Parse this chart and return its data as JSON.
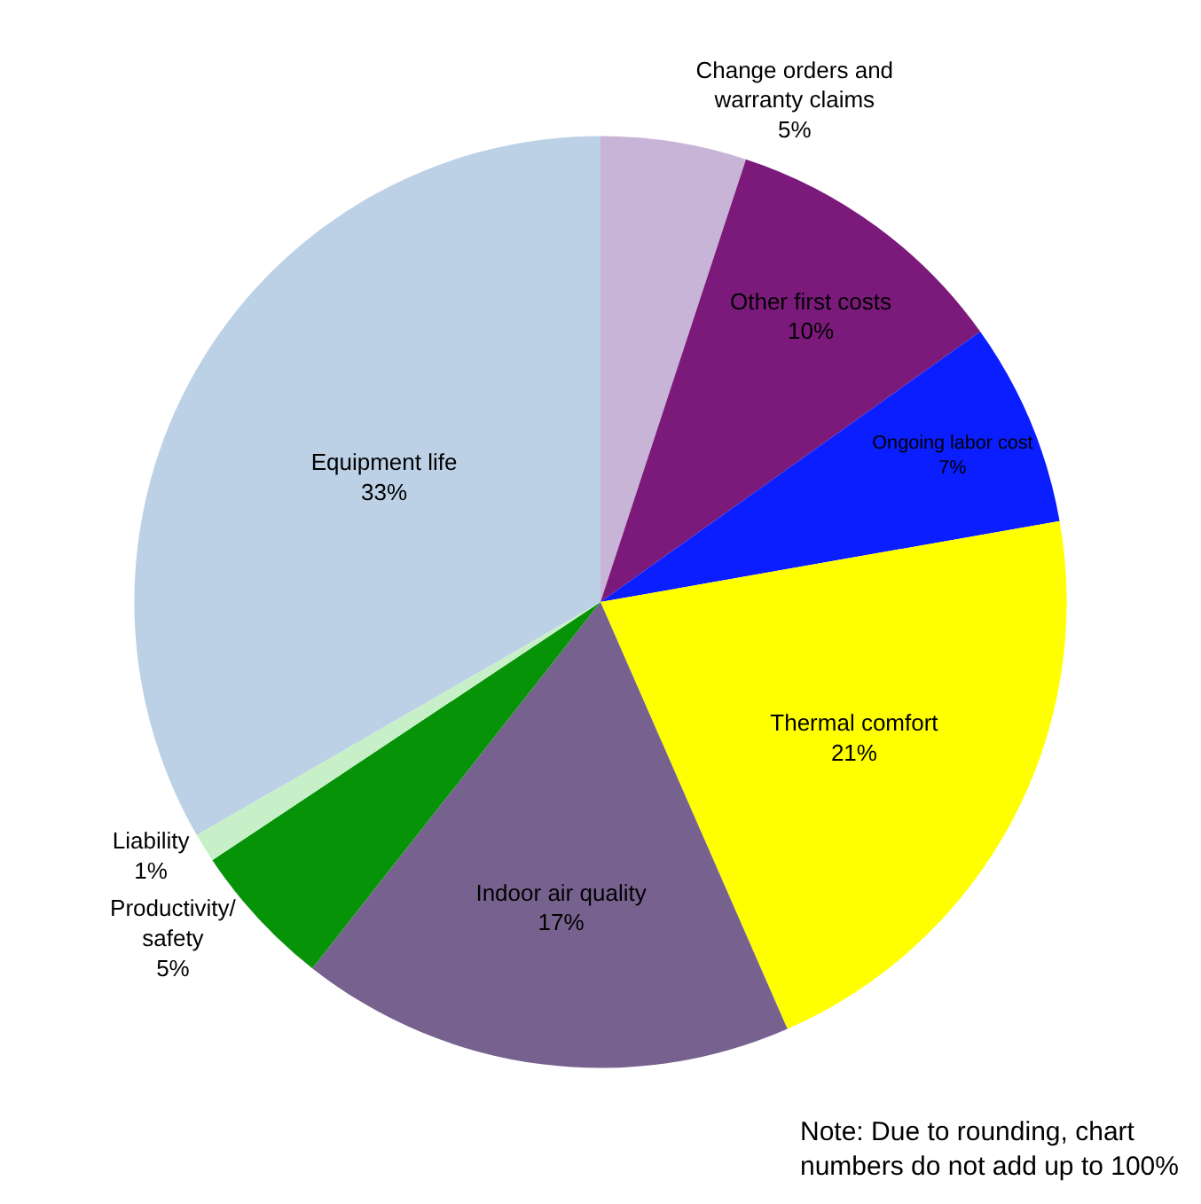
{
  "chart_data": {
    "type": "pie",
    "categories": [
      "Change orders and warranty claims",
      "Other first costs",
      "Ongoing labor cost",
      "Thermal comfort",
      "Indoor air quality",
      "Productivity/ safety",
      "Liability",
      "Equipment life"
    ],
    "values": [
      5,
      10,
      7,
      21,
      17,
      5,
      1,
      33
    ],
    "value_labels": [
      "5%",
      "10%",
      "7%",
      "21%",
      "17%",
      "5%",
      "1%",
      "33%"
    ],
    "colors": [
      "#c8b4d6",
      "#7b1a7b",
      "#0a1eff",
      "#ffff00",
      "#77628f",
      "#079307",
      "#c8f0c8",
      "#bcd0e6"
    ],
    "annotations": [
      "Note: Due to rounding, chart numbers do not add up to 100%"
    ]
  }
}
